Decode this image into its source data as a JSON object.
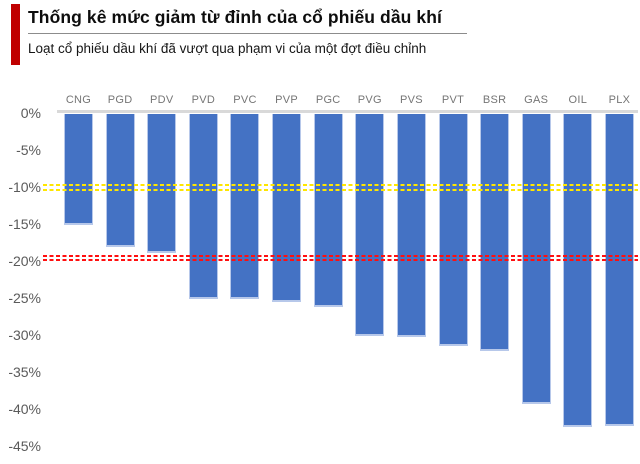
{
  "header": {
    "title": "Thống kê mức giảm từ đỉnh của cổ phiếu dầu khí",
    "subtitle": "Loạt cổ phiếu dầu khí đã vượt qua phạm vi của một đợt điều chỉnh",
    "accent_color": "#c00000"
  },
  "chart_data": {
    "type": "bar",
    "orientation": "vertical-negative",
    "title": "Thống kê mức giảm từ đỉnh của cổ phiếu dầu khí",
    "subtitle": "Loạt cổ phiếu dầu khí đã vượt qua phạm vi của một đợt điều chỉnh",
    "categories": [
      "CNG",
      "PGD",
      "PDV",
      "PVD",
      "PVC",
      "PVP",
      "PGC",
      "PVG",
      "PVS",
      "PVT",
      "BSR",
      "GAS",
      "OIL",
      "PLX"
    ],
    "values": [
      -15.0,
      -18.0,
      -18.8,
      -25.0,
      -25.1,
      -25.5,
      -26.1,
      -30.0,
      -30.1,
      -31.4,
      -32.1,
      -39.2,
      -42.3,
      -42.2
    ],
    "unit": "%",
    "xlabel": "",
    "ylabel": "",
    "ylim": [
      -45,
      0
    ],
    "ytick_step": 5,
    "ytick_labels": [
      "0%",
      "-5%",
      "-10%",
      "-15%",
      "-20%",
      "-25%",
      "-30%",
      "-35%",
      "-40%",
      "-45%"
    ],
    "x_labels_position": "top",
    "grid": false,
    "legend": false,
    "bar_color": "#4472c4",
    "bar_edge_color": "#b7c8ea",
    "axis_line_color": "#d9d9d9",
    "reference_lines": [
      {
        "id": "correction",
        "value": -10,
        "color": "#ffe600",
        "style": "dashed",
        "meaning": "correction threshold"
      },
      {
        "id": "bear",
        "value": -19.5,
        "color": "#ff0f0f",
        "style": "dashed",
        "meaning": "bear-market threshold"
      }
    ]
  }
}
